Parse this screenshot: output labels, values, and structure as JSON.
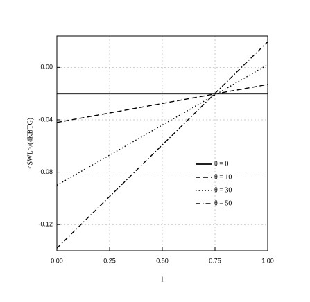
{
  "chart_data": {
    "type": "line",
    "x_label": "l",
    "y_label": "<SWL>/(4KBTG)",
    "x": [
      0,
      1
    ],
    "series": [
      {
        "name": "θ = 0",
        "color": "#000000",
        "dash": "solid",
        "values": [
          -0.02,
          -0.02
        ]
      },
      {
        "name": "θ = 10",
        "color": "#000000",
        "dash": "dashed",
        "values": [
          -0.042,
          -0.013
        ]
      },
      {
        "name": "θ = 30",
        "color": "#000000",
        "dash": "dotted",
        "values": [
          -0.09,
          0.002
        ]
      },
      {
        "name": "θ = 50",
        "color": "#000000",
        "dash": "dashdot",
        "values": [
          -0.138,
          0.0196
        ]
      }
    ],
    "xlim": [
      0,
      1
    ],
    "xticks": [
      {
        "value": 0,
        "label": "0.00"
      },
      0.25,
      {
        "value": 0.5,
        "label": "0.50"
      },
      0.75,
      {
        "value": 1,
        "label": "1.00"
      }
    ],
    "ylim": [
      -0.14,
      0.024
    ],
    "yticks": [
      {
        "value": 0,
        "label": "0.00"
      },
      -0.04,
      -0.08,
      -0.12
    ],
    "grid": true,
    "legend": "center right"
  }
}
